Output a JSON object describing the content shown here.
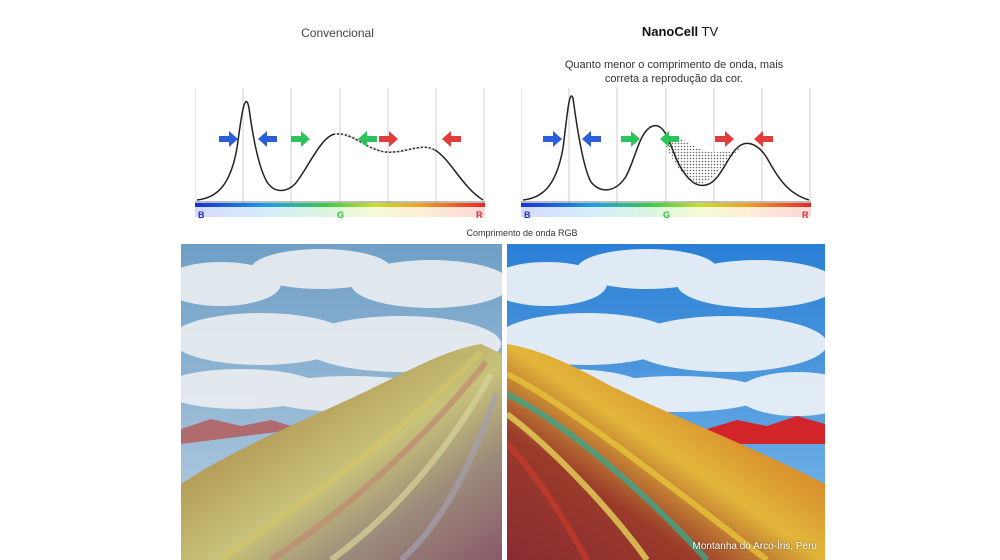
{
  "left_title": "Convencional",
  "right_title_bold": "NanoCell",
  "right_title_rest": " TV",
  "subtitle_line1": "Quanto menor o comprimento de onda, mais",
  "subtitle_line2": "correta a reprodução da cor.",
  "axis_caption": "Comprimento de onda RGB",
  "axis_labels": {
    "b": "B",
    "g": "G",
    "r": "R"
  },
  "photo_caption": "Montanha do Arco-Íris, Peru",
  "colors": {
    "blue": "#2b5fd9",
    "green": "#2bc45a",
    "red": "#e23c3c"
  }
}
